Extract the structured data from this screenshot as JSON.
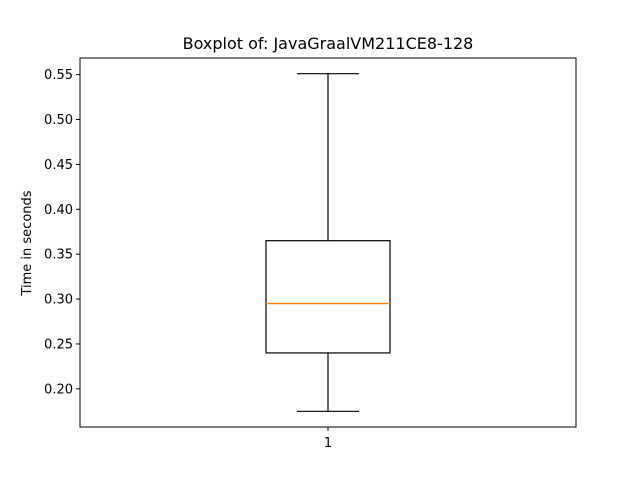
{
  "chart_data": {
    "type": "boxplot",
    "title": "Boxplot of: JavaGraalVM211CE8-128",
    "xlabel": "",
    "ylabel": "Time in seconds",
    "categories": [
      "1"
    ],
    "boxes": [
      {
        "category": "1",
        "whisker_low": 0.175,
        "q1": 0.24,
        "median": 0.295,
        "q3": 0.365,
        "whisker_high": 0.551
      }
    ],
    "ylim": [
      0.1575,
      0.5685
    ],
    "yticks": [
      0.2,
      0.25,
      0.3,
      0.35,
      0.4,
      0.45,
      0.5,
      0.55
    ],
    "ytick_labels": [
      "0.20",
      "0.25",
      "0.30",
      "0.35",
      "0.40",
      "0.45",
      "0.50",
      "0.55"
    ],
    "grid": false,
    "colors": {
      "box": "#000000",
      "median": "#ff7f0e",
      "whisker": "#000000"
    }
  }
}
